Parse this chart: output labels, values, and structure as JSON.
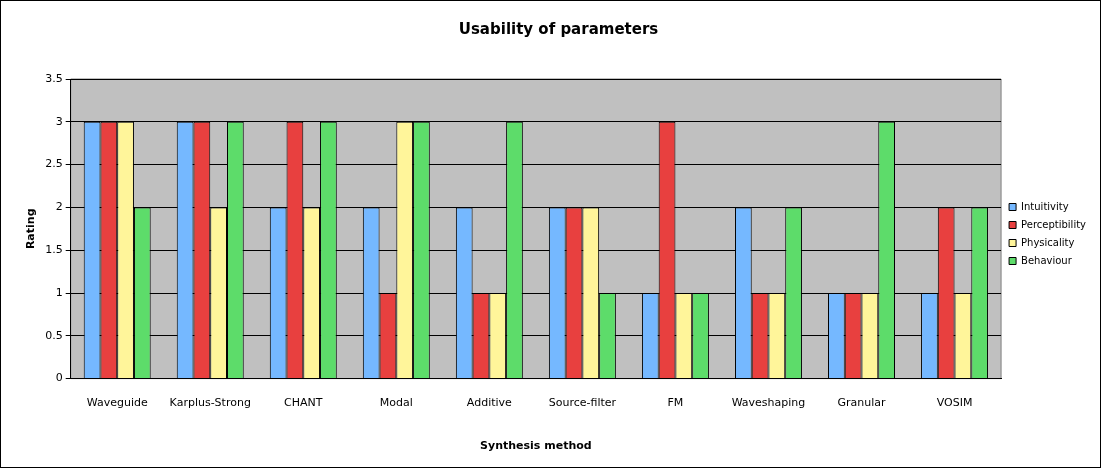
{
  "chart_data": {
    "type": "bar",
    "title": "Usability of parameters",
    "xlabel": "Synthesis method",
    "ylabel": "Rating",
    "categories": [
      "Waveguide",
      "Karplus-Strong",
      "CHANT",
      "Modal",
      "Additive",
      "Source-filter",
      "FM",
      "Waveshaping",
      "Granular",
      "VOSIM"
    ],
    "series": [
      {
        "name": "Intuitivity",
        "color": "#75b8ff",
        "values": [
          3,
          3,
          2,
          2,
          2,
          2,
          1,
          2,
          1,
          1
        ]
      },
      {
        "name": "Perceptibility",
        "color": "#e8403f",
        "values": [
          3,
          3,
          3,
          1,
          1,
          2,
          3,
          1,
          1,
          2
        ]
      },
      {
        "name": "Physicality",
        "color": "#fff59a",
        "values": [
          3,
          2,
          2,
          3,
          1,
          2,
          1,
          1,
          1,
          1
        ]
      },
      {
        "name": "Behaviour",
        "color": "#5ddc6a",
        "values": [
          2,
          3,
          3,
          3,
          3,
          1,
          1,
          2,
          3,
          2
        ]
      }
    ],
    "ylim": [
      0,
      3.5
    ],
    "yticks": [
      0,
      0.5,
      1,
      1.5,
      2,
      2.5,
      3,
      3.5
    ],
    "grid": "y",
    "legend": "right"
  }
}
